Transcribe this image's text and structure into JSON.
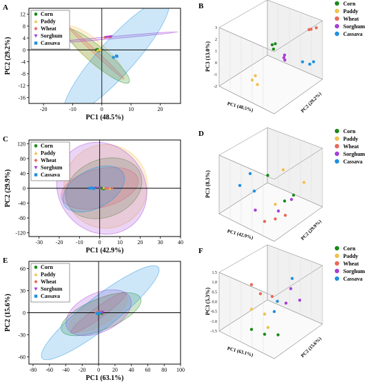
{
  "colors": {
    "Corn": "#1a8a1a",
    "Paddy": "#f2c14e",
    "Wheat": "#e8695a",
    "Sorghum": "#a63fd9",
    "Cassava": "#1e90e0"
  },
  "legend_order": [
    "Corn",
    "Paddy",
    "Wheat",
    "Sorghum",
    "Cassava"
  ],
  "chart_data": [
    {
      "panel": "A",
      "type": "scatter",
      "xlabel": "PC1 (48.5%)",
      "ylabel": "PC2 (29.2%)",
      "xlim": [
        -25,
        27
      ],
      "ylim": [
        -18,
        14
      ],
      "xticks": [
        "-20",
        "-10",
        "0",
        "10",
        "20"
      ],
      "xtick_values": [
        -20,
        -10,
        0,
        10,
        20
      ],
      "yticks": [
        "-16",
        "-12",
        "-8",
        "-4",
        "0",
        "4",
        "8",
        "12"
      ],
      "ytick_values": [
        -16,
        -12,
        -8,
        -4,
        0,
        4,
        8,
        12
      ],
      "legend": "top-left",
      "series": [
        {
          "name": "Corn",
          "points": [
            [
              -2,
              0
            ],
            [
              -1.5,
              0.2
            ],
            [
              -1,
              -0.3
            ]
          ],
          "ellipse": {
            "cx": -1.5,
            "cy": -2,
            "rx": 14,
            "ry": 3,
            "angle": -40
          }
        },
        {
          "name": "Paddy",
          "points": [
            [
              -1.5,
              -0.2
            ],
            [
              -1,
              0
            ],
            [
              -0.5,
              0.1
            ]
          ],
          "ellipse": {
            "cx": -2,
            "cy": -1,
            "rx": 13,
            "ry": 3.5,
            "angle": -42
          }
        },
        {
          "name": "Wheat",
          "points": [
            [
              1,
              4.2
            ],
            [
              2,
              4.3
            ],
            [
              3,
              4.4
            ]
          ],
          "ellipse": {
            "cx": -2,
            "cy": -1,
            "rx": 13,
            "ry": 0.6,
            "angle": -43
          }
        },
        {
          "name": "Sorghum",
          "points": [
            [
              1.5,
              4.3
            ],
            [
              2.5,
              4.4
            ],
            [
              3.2,
              4.5
            ]
          ],
          "ellipse": {
            "cx": 2,
            "cy": 4,
            "rx": 24,
            "ry": 0.4,
            "angle": 5
          }
        },
        {
          "name": "Cassava",
          "points": [
            [
              4,
              -2.5
            ],
            [
              5,
              -2
            ],
            [
              5.2,
              -2.2
            ]
          ],
          "ellipse": {
            "cx": 5,
            "cy": -2.5,
            "rx": 26,
            "ry": 6,
            "angle": 48
          }
        }
      ]
    },
    {
      "panel": "B",
      "type": "scatter3d",
      "xlabel": "PC1 (48.5%)",
      "ylabel": "PC2 (29.2%)",
      "zlabel": "PC3 (13.0%)",
      "zticks": [
        "3",
        "2",
        "1",
        "0",
        "-1",
        "-2"
      ],
      "zlim": [
        -2.5,
        3.2
      ],
      "legend": "right",
      "series": [
        {
          "name": "Corn",
          "points": [
            [
              0.5,
              0.1,
              2.8
            ],
            [
              0.53,
              0.1,
              2.7
            ],
            [
              0.51,
              0.12,
              2.3
            ]
          ]
        },
        {
          "name": "Paddy",
          "points": [
            [
              0.3,
              0.15,
              -1.2
            ],
            [
              0.33,
              0.15,
              -0.7
            ],
            [
              0.35,
              0.15,
              -1.5
            ]
          ]
        },
        {
          "name": "Wheat",
          "points": [
            [
              0.85,
              0.15,
              1.9
            ],
            [
              0.87,
              0.15,
              1.8
            ],
            [
              0.92,
              0.15,
              1.6
            ]
          ]
        },
        {
          "name": "Sorghum",
          "points": [
            [
              0.62,
              0.1,
              1.0
            ],
            [
              0.61,
              0.12,
              0.8
            ],
            [
              0.62,
              0.12,
              0.5
            ]
          ]
        },
        {
          "name": "Cassava",
          "points": [
            [
              0.78,
              0.2,
              -0.8
            ],
            [
              0.85,
              0.2,
              -1.5
            ],
            [
              0.88,
              0.25,
              -1.5
            ]
          ]
        }
      ]
    },
    {
      "panel": "C",
      "type": "scatter",
      "xlabel": "PC1 (42.9%)",
      "ylabel": "PC2 (29.9%)",
      "xlim": [
        -35,
        40
      ],
      "ylim": [
        -130,
        130
      ],
      "xticks": [
        "-30",
        "-20",
        "-10",
        "0",
        "10",
        "20",
        "30",
        "40"
      ],
      "xtick_values": [
        -30,
        -20,
        -10,
        0,
        10,
        20,
        30,
        40
      ],
      "yticks": [
        "-120",
        "-80",
        "-40",
        "0",
        "40",
        "80",
        "120"
      ],
      "ytick_values": [
        -120,
        -80,
        -40,
        0,
        40,
        80,
        120
      ],
      "legend": "top-left",
      "series": [
        {
          "name": "Corn",
          "points": [
            [
              0,
              2
            ],
            [
              1,
              0
            ],
            [
              2,
              -2
            ]
          ],
          "ellipse": {
            "cx": 2,
            "cy": 0,
            "rx": 33,
            "ry": 24,
            "angle": 22
          }
        },
        {
          "name": "Paddy",
          "points": [
            [
              2,
              1
            ],
            [
              4,
              0
            ],
            [
              5,
              -1
            ]
          ],
          "ellipse": {
            "cx": 3,
            "cy": 5,
            "rx": 35,
            "ry": 35,
            "angle": 25
          }
        },
        {
          "name": "Wheat",
          "points": [
            [
              3,
              0
            ],
            [
              4,
              0
            ],
            [
              6,
              0
            ]
          ],
          "ellipse": {
            "cx": 0,
            "cy": 0,
            "rx": 33,
            "ry": 16,
            "angle": 14
          }
        },
        {
          "name": "Sorghum",
          "points": [
            [
              -3,
              0
            ],
            [
              -2,
              1
            ],
            [
              0,
              1
            ]
          ],
          "ellipse": {
            "cx": 1,
            "cy": 0,
            "rx": 36,
            "ry": 40,
            "angle": 40
          }
        },
        {
          "name": "Cassava",
          "points": [
            [
              -5,
              0
            ],
            [
              -4,
              1
            ],
            [
              -3,
              -1
            ]
          ],
          "ellipse": {
            "cx": -3,
            "cy": -2,
            "rx": 28,
            "ry": 16,
            "angle": 28
          }
        }
      ]
    },
    {
      "panel": "D",
      "type": "scatter3d",
      "xlabel": "PC1 (42.9%)",
      "ylabel": "PC2 (29.9%)",
      "zlabel": "PC3 (8.3%)",
      "legend": "right",
      "series": [
        {
          "name": "Corn",
          "points": [
            [
              0.45,
              0.15,
              0.85
            ],
            [
              0.62,
              0.1,
              0.3
            ],
            [
              0.7,
              0.15,
              0.3
            ]
          ]
        },
        {
          "name": "Paddy",
          "points": [
            [
              0.6,
              0.15,
              0.85
            ],
            [
              0.53,
              0.1,
              0.35
            ],
            [
              0.8,
              0.15,
              0.4
            ]
          ]
        },
        {
          "name": "Wheat",
          "points": [
            [
              0.42,
              0.15,
              0.05
            ],
            [
              0.53,
              0.1,
              0.1
            ],
            [
              0.62,
              0.15,
              0.05
            ]
          ]
        },
        {
          "name": "Sorghum",
          "points": [
            [
              0.33,
              0.15,
              0.2
            ],
            [
              0.56,
              0.1,
              0.2
            ],
            [
              0.68,
              0.15,
              0.25
            ]
          ]
        },
        {
          "name": "Cassava",
          "points": [
            [
              0.18,
              0.15,
              0.55
            ],
            [
              0.28,
              0.15,
              0.8
            ],
            [
              0.32,
              0.15,
              0.52
            ]
          ]
        }
      ]
    },
    {
      "panel": "E",
      "type": "scatter",
      "xlabel": "PC1 (63.1%)",
      "ylabel": "PC2 (15.6%)",
      "xlim": [
        -85,
        100
      ],
      "ylim": [
        -70,
        70
      ],
      "xticks": [
        "-80",
        "-60",
        "-40",
        "-20",
        "0",
        "20",
        "40",
        "60",
        "80",
        "100"
      ],
      "xtick_values": [
        -80,
        -60,
        -40,
        -20,
        0,
        20,
        40,
        60,
        80,
        100
      ],
      "yticks": [
        "-60",
        "-30",
        "0",
        "30",
        "60"
      ],
      "ytick_values": [
        -60,
        -30,
        0,
        30,
        60
      ],
      "legend": "top-left",
      "series": [
        {
          "name": "Corn",
          "points": [
            [
              0,
              -2
            ],
            [
              2,
              0
            ],
            [
              4,
              -1
            ]
          ],
          "ellipse": {
            "cx": 3,
            "cy": -2,
            "rx": 55,
            "ry": 20,
            "angle": 22
          }
        },
        {
          "name": "Paddy",
          "points": [
            [
              -2,
              0
            ],
            [
              0,
              1
            ],
            [
              2,
              1
            ]
          ],
          "ellipse": {
            "cx": 0,
            "cy": 0,
            "rx": 42,
            "ry": 16,
            "angle": 30
          }
        },
        {
          "name": "Wheat",
          "points": [
            [
              -3,
              0
            ],
            [
              -1,
              1
            ],
            [
              1,
              2
            ]
          ],
          "ellipse": {
            "cx": 0,
            "cy": 0,
            "rx": 44,
            "ry": 7,
            "angle": 36
          }
        },
        {
          "name": "Sorghum",
          "points": [
            [
              2,
              0
            ],
            [
              4,
              0
            ],
            [
              5,
              1
            ]
          ],
          "ellipse": {
            "cx": 0,
            "cy": 0,
            "rx": 45,
            "ry": 25,
            "angle": 25
          }
        },
        {
          "name": "Cassava",
          "points": [
            [
              -2,
              -1
            ],
            [
              0,
              -1
            ],
            [
              1,
              0
            ]
          ],
          "ellipse": {
            "cx": 2,
            "cy": 0,
            "rx": 95,
            "ry": 20,
            "angle": 38
          }
        }
      ]
    },
    {
      "panel": "F",
      "type": "scatter3d",
      "xlabel": "PC1 (63.1%)",
      "ylabel": "PC2 (15.6%)",
      "zlabel": "PC3 (5.3%)",
      "zticks": [
        "1.5",
        "1.0",
        "0.5",
        "0.0",
        "-0.5",
        "-1.0",
        "-1.5"
      ],
      "zlim": [
        -1.6,
        1.6
      ],
      "legend": "right",
      "series": [
        {
          "name": "Corn",
          "points": [
            [
              0.3,
              0.1,
              -1.1
            ],
            [
              0.42,
              0.15,
              -1.2
            ],
            [
              0.55,
              0.15,
              -1.3
            ]
          ]
        },
        {
          "name": "Paddy",
          "points": [
            [
              0.3,
              0.1,
              0.0
            ],
            [
              0.42,
              0.15,
              -0.1
            ],
            [
              0.46,
              0.1,
              -0.75
            ]
          ]
        },
        {
          "name": "Wheat",
          "points": [
            [
              0.3,
              0.1,
              1.35
            ],
            [
              0.38,
              0.15,
              0.95
            ],
            [
              0.5,
              0.1,
              1.0
            ]
          ]
        },
        {
          "name": "Sorghum",
          "points": [
            [
              0.62,
              0.2,
              0.15
            ],
            [
              0.68,
              0.1,
              0.75
            ],
            [
              0.76,
              0.15,
              -0.2
            ]
          ]
        },
        {
          "name": "Cassava",
          "points": [
            [
              0.55,
              0.1,
              0.55
            ],
            [
              0.52,
              0.1,
              0.1
            ],
            [
              0.7,
              0.05,
              1.25
            ]
          ]
        }
      ]
    }
  ]
}
